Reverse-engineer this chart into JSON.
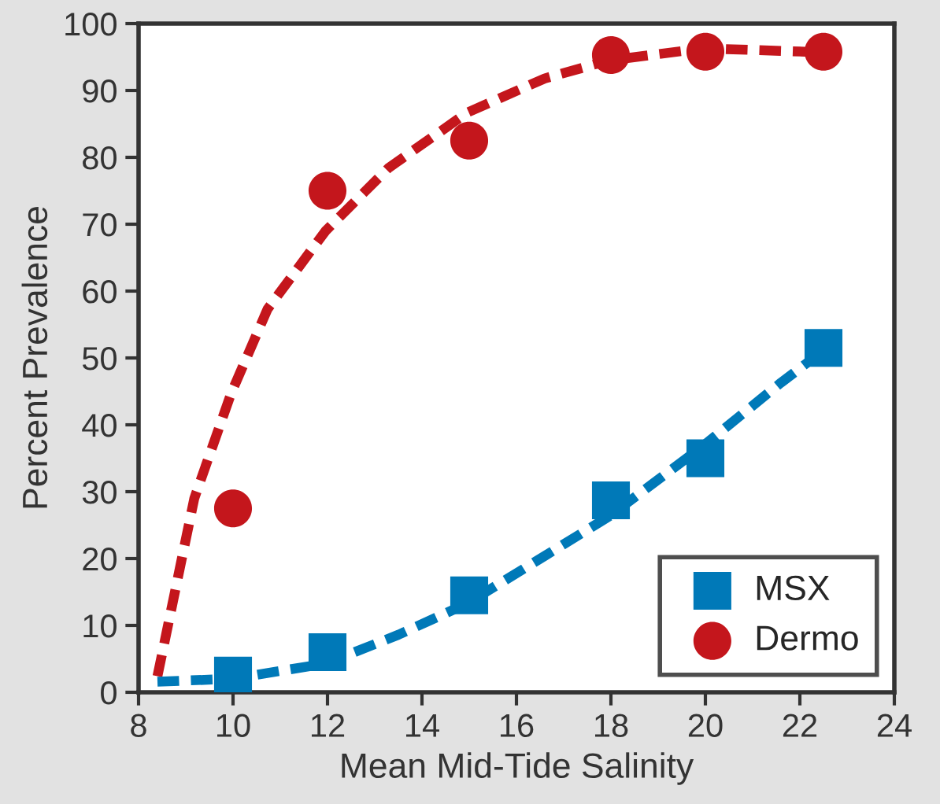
{
  "chart_data": {
    "type": "scatter",
    "xlabel": "Mean Mid-Tide Salinity",
    "ylabel": "Percent Prevalence",
    "xlim": [
      8,
      24
    ],
    "xticks": [
      8,
      10,
      12,
      14,
      16,
      18,
      20,
      22,
      24
    ],
    "ylim": [
      0,
      100
    ],
    "yticks": [
      0,
      10,
      20,
      30,
      40,
      50,
      60,
      70,
      80,
      90,
      100
    ],
    "grid": false,
    "legend": "bottom right",
    "series": [
      {
        "type": "line",
        "color": "#c4161c",
        "line_style": "dashed",
        "marker": "none",
        "x": [
          8.4,
          9.18,
          9.96,
          10.73,
          11.96,
          13.29,
          14.96,
          16.6,
          17.96,
          19.96,
          22.5
        ],
        "values": [
          2.4,
          29,
          44.7,
          57.3,
          69,
          78.4,
          86.7,
          91.8,
          94.5,
          96.3,
          95.7
        ]
      },
      {
        "type": "line",
        "color": "#0079b8",
        "line_style": "dashed",
        "marker": "none",
        "x": [
          8.4,
          9.96,
          11.96,
          13.5,
          14.96,
          16.6,
          17.96,
          19.96,
          21.6,
          22.7
        ],
        "values": [
          1.6,
          2.0,
          4.3,
          8.6,
          13.3,
          20.4,
          26.3,
          36.9,
          46.3,
          52.2
        ]
      },
      {
        "name": "MSX",
        "color": "#0079b8",
        "marker": "square",
        "x": [
          10,
          12,
          15,
          18,
          20,
          22.5
        ],
        "values": [
          2.5,
          6,
          14.5,
          28.7,
          35,
          51.5
        ]
      },
      {
        "name": "Dermo",
        "color": "#c4161c",
        "marker": "circle",
        "x": [
          10,
          12,
          15,
          18,
          20,
          22.5
        ],
        "values": [
          27.5,
          75,
          82.5,
          95.3,
          95.8,
          95.8
        ]
      }
    ]
  }
}
